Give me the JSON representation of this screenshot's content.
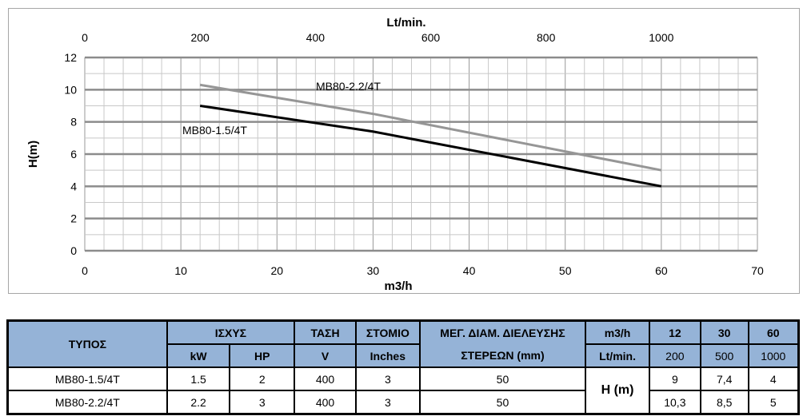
{
  "chart_data": {
    "type": "line",
    "xlabel": "m3/h",
    "x2label": "Lt/min.",
    "ylabel": "H(m)",
    "xlim": [
      0,
      70
    ],
    "x2lim": [
      0,
      1166.67
    ],
    "ylim": [
      0,
      12
    ],
    "xticks": [
      0,
      10,
      20,
      30,
      40,
      50,
      60,
      70
    ],
    "x2ticks": [
      0,
      200,
      400,
      600,
      800,
      1000
    ],
    "yticks": [
      0,
      2,
      4,
      6,
      8,
      10,
      12
    ],
    "grid": true,
    "series": [
      {
        "name": "MB80-1.5/4T",
        "color": "#000000",
        "x": [
          12,
          30,
          60
        ],
        "y": [
          9,
          7.4,
          4
        ]
      },
      {
        "name": "MB80-2.2/4T",
        "color": "#969696",
        "x": [
          12,
          30,
          60
        ],
        "y": [
          10.3,
          8.5,
          5
        ]
      }
    ]
  },
  "table": {
    "header": {
      "type": "ΤΥΠΟΣ",
      "power": "ΙΣΧΥΣ",
      "voltage": "ΤΑΣΗ",
      "outlet": "ΣΤΟΜΙΟ",
      "solids1": "ΜΕΓ. ΔΙΑΜ. ΔΙΕΛΕΥΣΗΣ",
      "solids2": "ΣΤΕΡΕΩΝ (mm)",
      "flow_m3h": "m3/h",
      "flow_lmin": "Lt/min.",
      "kw": "kW",
      "hp": "HP",
      "v": "V",
      "inches": "Inches",
      "q_m3h": [
        "12",
        "30",
        "60"
      ],
      "q_lmin": [
        "200",
        "500",
        "1000"
      ]
    },
    "head_label": "H (m)",
    "rows": [
      {
        "model": "MB80-1.5/4T",
        "kw": "1.5",
        "hp": "2",
        "v": "400",
        "inch": "3",
        "solids": "50",
        "h": [
          "9",
          "7,4",
          "4"
        ]
      },
      {
        "model": "MB80-2.2/4T",
        "kw": "2.2",
        "hp": "3",
        "v": "400",
        "inch": "3",
        "solids": "50",
        "h": [
          "10,3",
          "8,5",
          "5"
        ]
      }
    ]
  },
  "colors": {
    "header_bg": "#95b3d7"
  }
}
